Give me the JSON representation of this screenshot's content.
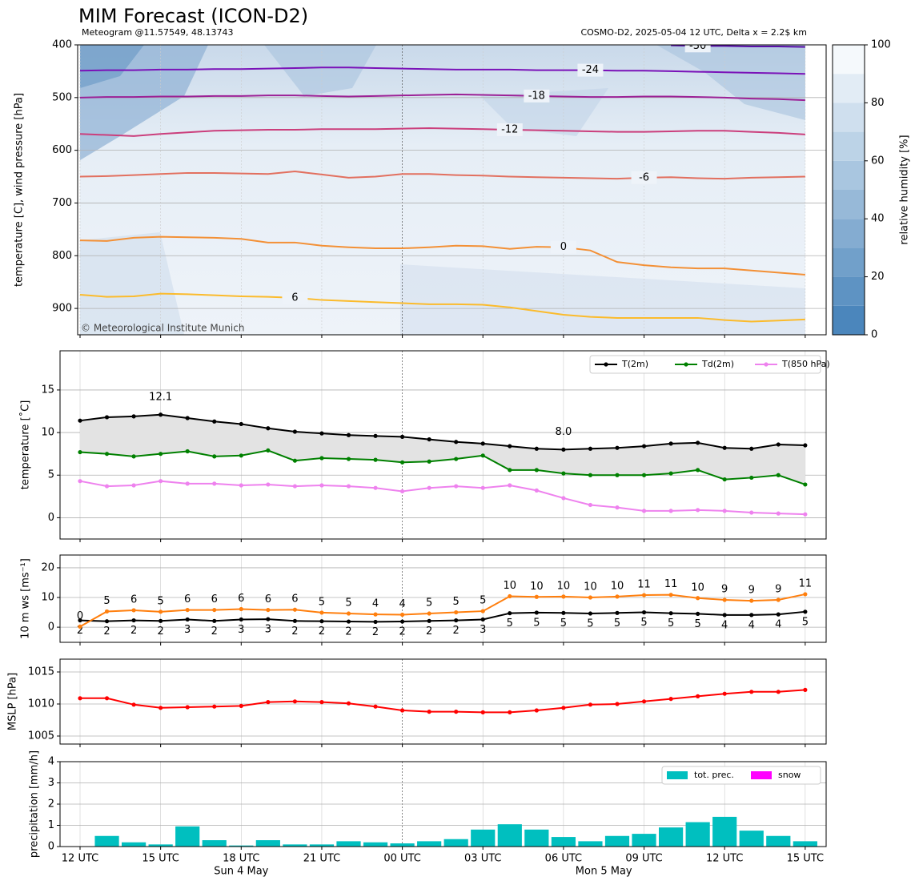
{
  "chart_data": [
    {
      "type": "contour",
      "title": "MIM Forecast (ICON-D2)",
      "subtitle": "Meteogram @11.57549, 48.13743",
      "subtitle_right": "COSMO-D2, 2025-05-04 12 UTC, Delta x = 2.2$ km",
      "ylabel": "temperature [C], wind pressure [hPa]",
      "credit": "© Meteorological Institute Munich",
      "ylim": [
        950,
        400
      ],
      "yticks": [
        400,
        500,
        600,
        700,
        800,
        900
      ],
      "grid": true,
      "colorbar": {
        "label": "relative humidity [%]",
        "lim": [
          0,
          100
        ],
        "ticks": [
          0,
          20,
          40,
          60,
          80,
          100
        ]
      },
      "series": [
        {
          "name": "-30",
          "color": "#5a0fa8",
          "values": [
            null,
            null,
            null,
            null,
            null,
            null,
            null,
            null,
            null,
            null,
            null,
            null,
            null,
            null,
            null,
            null,
            null,
            null,
            null,
            null,
            null,
            null,
            401,
            402,
            402,
            403,
            403,
            404
          ]
        },
        {
          "name": "-24",
          "color": "#7a12b8",
          "values": [
            449,
            448,
            448,
            447,
            447,
            446,
            446,
            445,
            444,
            443,
            443,
            444,
            445,
            446,
            447,
            447,
            447,
            448,
            448,
            448,
            449,
            449,
            450,
            451,
            452,
            453,
            454,
            455
          ]
        },
        {
          "name": "-18",
          "color": "#9c2196",
          "values": [
            500,
            499,
            499,
            498,
            498,
            497,
            497,
            496,
            496,
            497,
            498,
            497,
            496,
            495,
            494,
            495,
            496,
            497,
            498,
            499,
            499,
            498,
            498,
            499,
            500,
            502,
            503,
            505
          ]
        },
        {
          "name": "-12",
          "color": "#cb3f7c",
          "values": [
            569,
            571,
            573,
            569,
            566,
            563,
            562,
            561,
            561,
            560,
            560,
            560,
            559,
            558,
            559,
            560,
            561,
            562,
            563,
            564,
            565,
            565,
            564,
            563,
            563,
            565,
            567,
            570
          ]
        },
        {
          "name": "-6",
          "color": "#e2705f",
          "values": [
            650,
            649,
            647,
            645,
            643,
            643,
            644,
            645,
            640,
            646,
            652,
            650,
            645,
            645,
            647,
            648,
            650,
            651,
            652,
            653,
            654,
            652,
            651,
            653,
            654,
            652,
            651,
            650
          ]
        },
        {
          "name": "0",
          "color": "#f39036",
          "values": [
            771,
            772,
            766,
            764,
            765,
            766,
            768,
            775,
            775,
            781,
            784,
            786,
            786,
            784,
            781,
            782,
            787,
            783,
            784,
            790,
            812,
            818,
            822,
            824,
            824,
            828,
            832,
            836
          ]
        },
        {
          "name": "6",
          "color": "#fbbb2c",
          "values": [
            874,
            878,
            877,
            872,
            873,
            875,
            877,
            878,
            880,
            884,
            886,
            888,
            890,
            892,
            892,
            893,
            898,
            905,
            912,
            916,
            918,
            918,
            918,
            918,
            922,
            925,
            923,
            921
          ]
        }
      ]
    },
    {
      "type": "line",
      "ylabel": "temperature [˚C]",
      "ylim": [
        -2.5,
        19.6
      ],
      "yticks": [
        0,
        5,
        10,
        15
      ],
      "grid": true,
      "shade_between": true,
      "legend": "upper right",
      "max_label": "12.1",
      "max_color": "#ff0000",
      "min_label": "8.0",
      "min_color": "#0000ff",
      "series": [
        {
          "name": "T(2m)",
          "color": "#000000",
          "values": [
            11.4,
            11.8,
            11.9,
            12.1,
            11.7,
            11.3,
            11.0,
            10.5,
            10.1,
            9.9,
            9.7,
            9.6,
            9.5,
            9.2,
            8.9,
            8.7,
            8.4,
            8.1,
            8.0,
            8.1,
            8.2,
            8.4,
            8.7,
            8.8,
            8.2,
            8.1,
            8.6,
            8.5
          ]
        },
        {
          "name": "Td(2m)",
          "color": "#008000",
          "values": [
            7.7,
            7.5,
            7.2,
            7.5,
            7.8,
            7.2,
            7.3,
            7.9,
            6.7,
            7.0,
            6.9,
            6.8,
            6.5,
            6.6,
            6.9,
            7.3,
            5.6,
            5.6,
            5.2,
            5.0,
            5.0,
            5.0,
            5.2,
            5.6,
            4.5,
            4.7,
            5.0,
            3.9
          ]
        },
        {
          "name": "T(850 hPa)",
          "color": "#ee82ee",
          "values": [
            4.3,
            3.7,
            3.8,
            4.3,
            4.0,
            4.0,
            3.8,
            3.9,
            3.7,
            3.8,
            3.7,
            3.5,
            3.1,
            3.5,
            3.7,
            3.5,
            3.8,
            3.2,
            2.3,
            1.5,
            1.2,
            0.8,
            0.8,
            0.9,
            0.8,
            0.6,
            0.5,
            0.4
          ]
        }
      ]
    },
    {
      "type": "line",
      "ylabel": "10 m ws [ms⁻¹]",
      "ylim": [
        -5.1,
        24.3
      ],
      "yticks": [
        0,
        10,
        20
      ],
      "grid": true,
      "series": [
        {
          "color": "#000000",
          "values": [
            2.3,
            2.0,
            2.3,
            2.1,
            2.6,
            2.1,
            2.6,
            2.7,
            2.1,
            2.0,
            1.9,
            1.8,
            1.9,
            2.1,
            2.3,
            2.6,
            4.7,
            4.9,
            4.8,
            4.6,
            4.8,
            5.0,
            4.7,
            4.5,
            4.1,
            4.1,
            4.3,
            5.2
          ],
          "value_labels": [
            "2",
            "2",
            "2",
            "2",
            "3",
            "2",
            "3",
            "3",
            "2",
            "2",
            "2",
            "2",
            "2",
            "2",
            "2",
            "3",
            "5",
            "5",
            "5",
            "5",
            "5",
            "5",
            "5",
            "5",
            "4",
            "4",
            "4",
            "5"
          ]
        },
        {
          "color": "#ff7f0e",
          "values": [
            0.2,
            5.3,
            5.7,
            5.2,
            5.8,
            5.8,
            6.1,
            5.8,
            5.9,
            4.9,
            4.6,
            4.3,
            4.2,
            4.6,
            5.0,
            5.4,
            10.4,
            10.2,
            10.3,
            10.0,
            10.3,
            10.8,
            10.9,
            9.8,
            9.2,
            8.9,
            9.2,
            11.1
          ],
          "value_labels": [
            "0",
            "5",
            "6",
            "5",
            "6",
            "6",
            "6",
            "6",
            "6",
            "5",
            "5",
            "4",
            "4",
            "5",
            "5",
            "5",
            "10",
            "10",
            "10",
            "10",
            "10",
            "11",
            "11",
            "10",
            "9",
            "9",
            "9",
            "11"
          ]
        }
      ]
    },
    {
      "type": "line",
      "ylabel": "MSLP [hPa]",
      "ylim": [
        1003.75,
        1017.0
      ],
      "yticks": [
        1005,
        1010,
        1015
      ],
      "grid": true,
      "series": [
        {
          "color": "#ff0000",
          "values": [
            1010.9,
            1010.9,
            1009.9,
            1009.4,
            1009.5,
            1009.6,
            1009.7,
            1010.3,
            1010.4,
            1010.3,
            1010.1,
            1009.6,
            1009.0,
            1008.8,
            1008.8,
            1008.7,
            1008.7,
            1009.0,
            1009.4,
            1009.9,
            1010.0,
            1010.4,
            1010.8,
            1011.2,
            1011.6,
            1011.9,
            1011.9,
            1012.2
          ]
        }
      ]
    },
    {
      "type": "bar",
      "ylabel": "precipitation [mm/h]",
      "ylim": [
        0,
        4
      ],
      "yticks": [
        0,
        1,
        2,
        3,
        4
      ],
      "grid": true,
      "legend": "upper right",
      "categories": [
        "12 UTC",
        null,
        null,
        "15 UTC",
        null,
        null,
        "18 UTC",
        null,
        null,
        "21 UTC",
        null,
        null,
        "00 UTC",
        null,
        null,
        "03 UTC",
        null,
        null,
        "06 UTC",
        null,
        null,
        "09 UTC",
        null,
        null,
        "12 UTC",
        null,
        null,
        "15 UTC"
      ],
      "date_labels": [
        "Sun 4 May",
        "Mon 5 May"
      ],
      "series": [
        {
          "name": "tot. prec.",
          "color": "#00bfbf",
          "values": [
            0,
            0.5,
            0.2,
            0.1,
            0.95,
            0.3,
            0.05,
            0.3,
            0.1,
            0.1,
            0.25,
            0.2,
            0.15,
            0.25,
            0.35,
            0.8,
            1.05,
            0.8,
            0.45,
            0.25,
            0.5,
            0.6,
            0.9,
            1.15,
            1.4,
            0.75,
            0.5,
            0.25
          ]
        },
        {
          "name": "snow",
          "color": "#ff00ff",
          "values": [
            0,
            0,
            0,
            0,
            0,
            0,
            0,
            0,
            0,
            0,
            0,
            0,
            0,
            0,
            0,
            0,
            0,
            0,
            0,
            0,
            0,
            0,
            0,
            0,
            0,
            0,
            0,
            0
          ]
        }
      ]
    }
  ]
}
